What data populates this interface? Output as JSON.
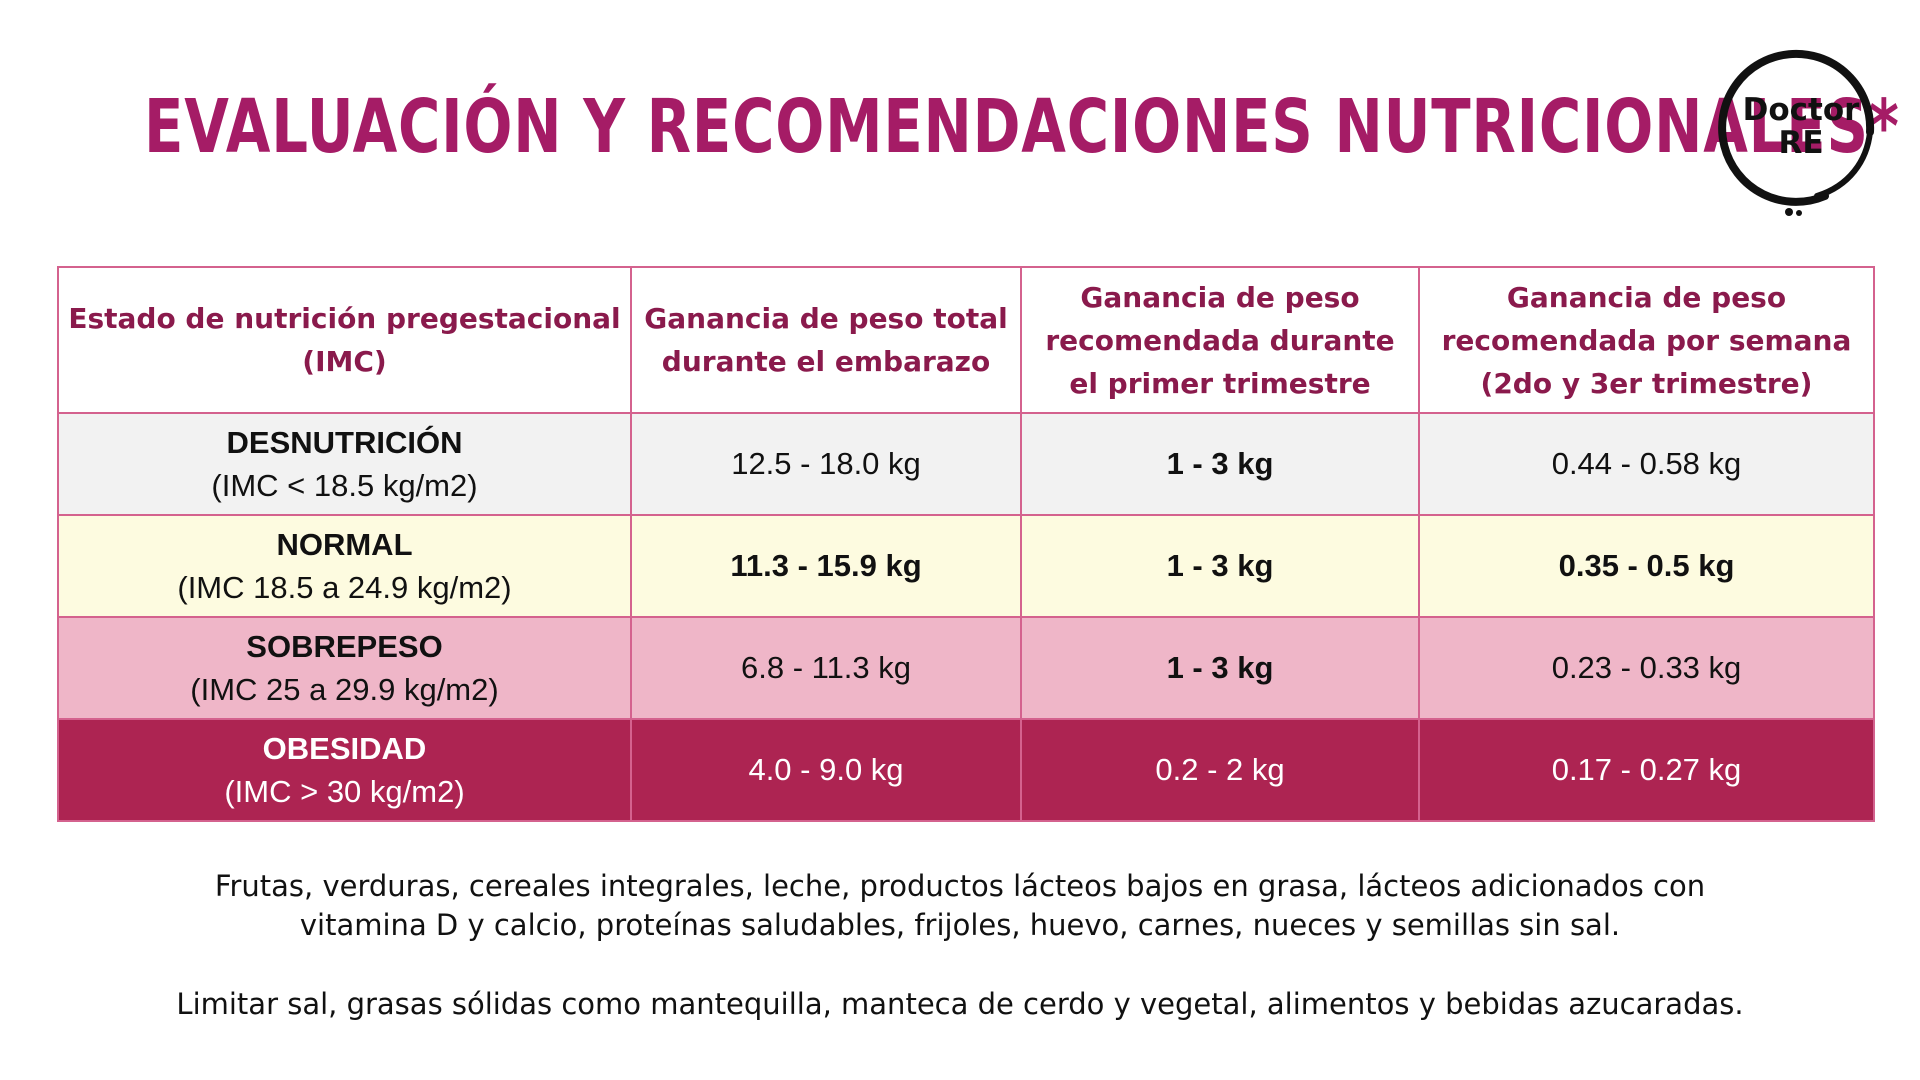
{
  "title": "EVALUACIÓN Y RECOMENDACIONES NUTRICIONALES*",
  "logo": {
    "line1": "Doctor",
    "line2": "RE"
  },
  "table": {
    "headers": [
      "Estado de nutrición pregestacional (IMC)",
      "Ganancia de peso total durante el embarazo",
      "Ganancia de peso recomendada durante el primer trimestre",
      "Ganancia de peso recomendada por semana (2do y 3er trimestre)"
    ],
    "rows": [
      {
        "category": "DESNUTRICIÓN",
        "imc": "(IMC < 18.5 kg/m2)",
        "total": "12.5 - 18.0 kg",
        "first_trimester": "1 - 3 kg",
        "per_week": "0.44 - 0.58 kg"
      },
      {
        "category": "NORMAL",
        "imc": "(IMC 18.5 a 24.9 kg/m2)",
        "total": "11.3 - 15.9 kg",
        "first_trimester": "1 - 3 kg",
        "per_week": "0.35 - 0.5 kg"
      },
      {
        "category": "SOBREPESO",
        "imc": "(IMC 25 a 29.9 kg/m2)",
        "total": "6.8 - 11.3 kg",
        "first_trimester": "1 - 3 kg",
        "per_week": "0.23 - 0.33 kg"
      },
      {
        "category": "OBESIDAD",
        "imc": "(IMC > 30 kg/m2)",
        "total": "4.0 - 9.0 kg",
        "first_trimester": "0.2 - 2 kg",
        "per_week": "0.17 - 0.27 kg"
      }
    ]
  },
  "notes": [
    "Frutas, verduras, cereales integrales, leche, productos lácteos bajos en grasa, lácteos adicionados con vitamina D y calcio, proteínas saludables, frijoles, huevo, carnes, nueces y semillas sin sal.",
    "Limitar sal, grasas sólidas como mantequilla, manteca de cerdo y vegetal, alimentos y bebidas azucaradas."
  ],
  "colors": {
    "title": "#a51c66",
    "header_text": "#8a1a4c",
    "border": "#d4628e",
    "highlight_red": "#e01b1b",
    "row_desnutricion": "#f2f2f2",
    "row_normal": "#fdfbe0",
    "row_sobrepeso": "#efb6c8",
    "row_obesidad": "#ad2452"
  }
}
